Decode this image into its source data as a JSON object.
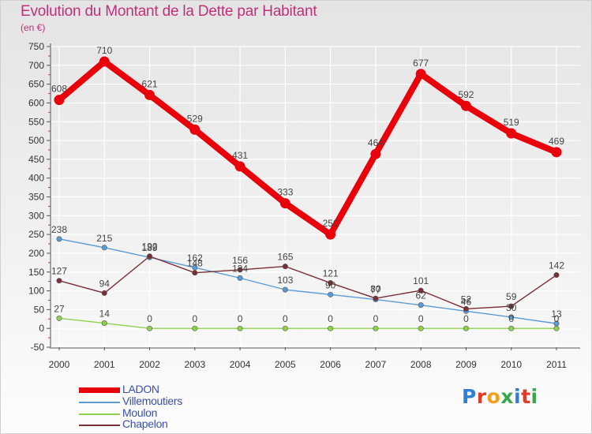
{
  "title": "Evolution du Montant de la Dette par Habitant",
  "subtitle": "(en €)",
  "logo": {
    "text": "Proxiti",
    "letter_colors": [
      "#2f7fd6",
      "#e23a2a",
      "#f0a020",
      "#36a84a",
      "#2f7fd6",
      "#e23a2a",
      "#36a84a"
    ]
  },
  "chart_data": {
    "type": "line",
    "x": [
      "2000",
      "2001",
      "2002",
      "2003",
      "2004",
      "2005",
      "2006",
      "2007",
      "2008",
      "2009",
      "2010",
      "2011"
    ],
    "yticks": [
      "750",
      "700",
      "650",
      "600",
      "550",
      "500",
      "450",
      "400",
      "350",
      "300",
      "250",
      "200",
      "150",
      "100",
      "50",
      "0",
      "-50"
    ],
    "ylim": [
      -50,
      750
    ],
    "grid": true,
    "legend_position": "bottom-left",
    "series": [
      {
        "name": "LADON",
        "color": "#e8000b",
        "values": [
          608,
          710,
          621,
          529,
          431,
          333,
          250,
          464,
          677,
          592,
          519,
          469
        ],
        "labels": [
          "608",
          "710",
          "621",
          "529",
          "431",
          "333",
          "250",
          "464",
          "677",
          "592",
          "519",
          "469"
        ]
      },
      {
        "name": "Villemoutiers",
        "color": "#5b9bd5",
        "values": [
          238,
          215,
          189,
          162,
          134,
          103,
          90,
          77,
          62,
          46,
          30,
          13
        ],
        "labels": [
          "238",
          "215",
          "189",
          "162",
          "134",
          "103",
          "90",
          "77",
          "62",
          "46",
          "30",
          "13"
        ]
      },
      {
        "name": "Moulon",
        "color": "#8fd14f",
        "values": [
          27,
          14,
          0,
          0,
          0,
          0,
          0,
          0,
          0,
          0,
          0,
          0
        ],
        "labels": [
          "27",
          "14",
          "0",
          "0",
          "0",
          "0",
          "0",
          "0",
          "0",
          "0",
          "0",
          "0"
        ]
      },
      {
        "name": "Chapelon",
        "color": "#7a2e35",
        "values": [
          127,
          94,
          192,
          148,
          156,
          165,
          121,
          80,
          101,
          52,
          59,
          142
        ],
        "labels": [
          "127",
          "94",
          "192",
          "148",
          "156",
          "165",
          "121",
          "80",
          "101",
          "52",
          "59",
          "142"
        ]
      }
    ]
  }
}
